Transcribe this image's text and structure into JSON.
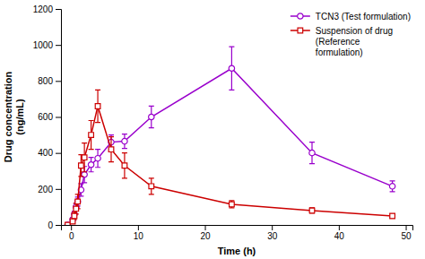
{
  "chart_data": {
    "type": "line",
    "x_label": "Time (h)",
    "y_label": "Drug concentration\n(ng/mL)",
    "x": [
      -0.5,
      0.25,
      0.5,
      0.75,
      1,
      1.5,
      2,
      3,
      4,
      6,
      8,
      12,
      24,
      36,
      48
    ],
    "series": [
      {
        "name": "TCN3 (Test formulation)",
        "color": "#9900cc",
        "marker": "circle",
        "values": [
          0,
          30,
          60,
          100,
          130,
          195,
          280,
          335,
          370,
          460,
          465,
          600,
          870,
          400,
          215
        ],
        "errors": [
          0,
          10,
          15,
          20,
          25,
          35,
          45,
          40,
          50,
          40,
          40,
          60,
          120,
          60,
          30
        ]
      },
      {
        "name": "Suspension of drug\n(Reference\nformulation)",
        "color": "#cc0000",
        "marker": "square",
        "values": [
          0,
          20,
          50,
          90,
          130,
          330,
          375,
          500,
          660,
          420,
          330,
          215,
          115,
          80,
          50
        ],
        "errors": [
          0,
          10,
          20,
          30,
          40,
          60,
          80,
          80,
          90,
          70,
          70,
          45,
          20,
          15,
          10
        ]
      }
    ],
    "xlim": [
      -1.5,
      51
    ],
    "ylim": [
      0,
      1200
    ],
    "xticks": [
      0,
      10,
      20,
      30,
      40,
      50
    ],
    "yticks": [
      0,
      200,
      400,
      600,
      800,
      1000,
      1200
    ],
    "legend": "upper right",
    "grid": false
  }
}
